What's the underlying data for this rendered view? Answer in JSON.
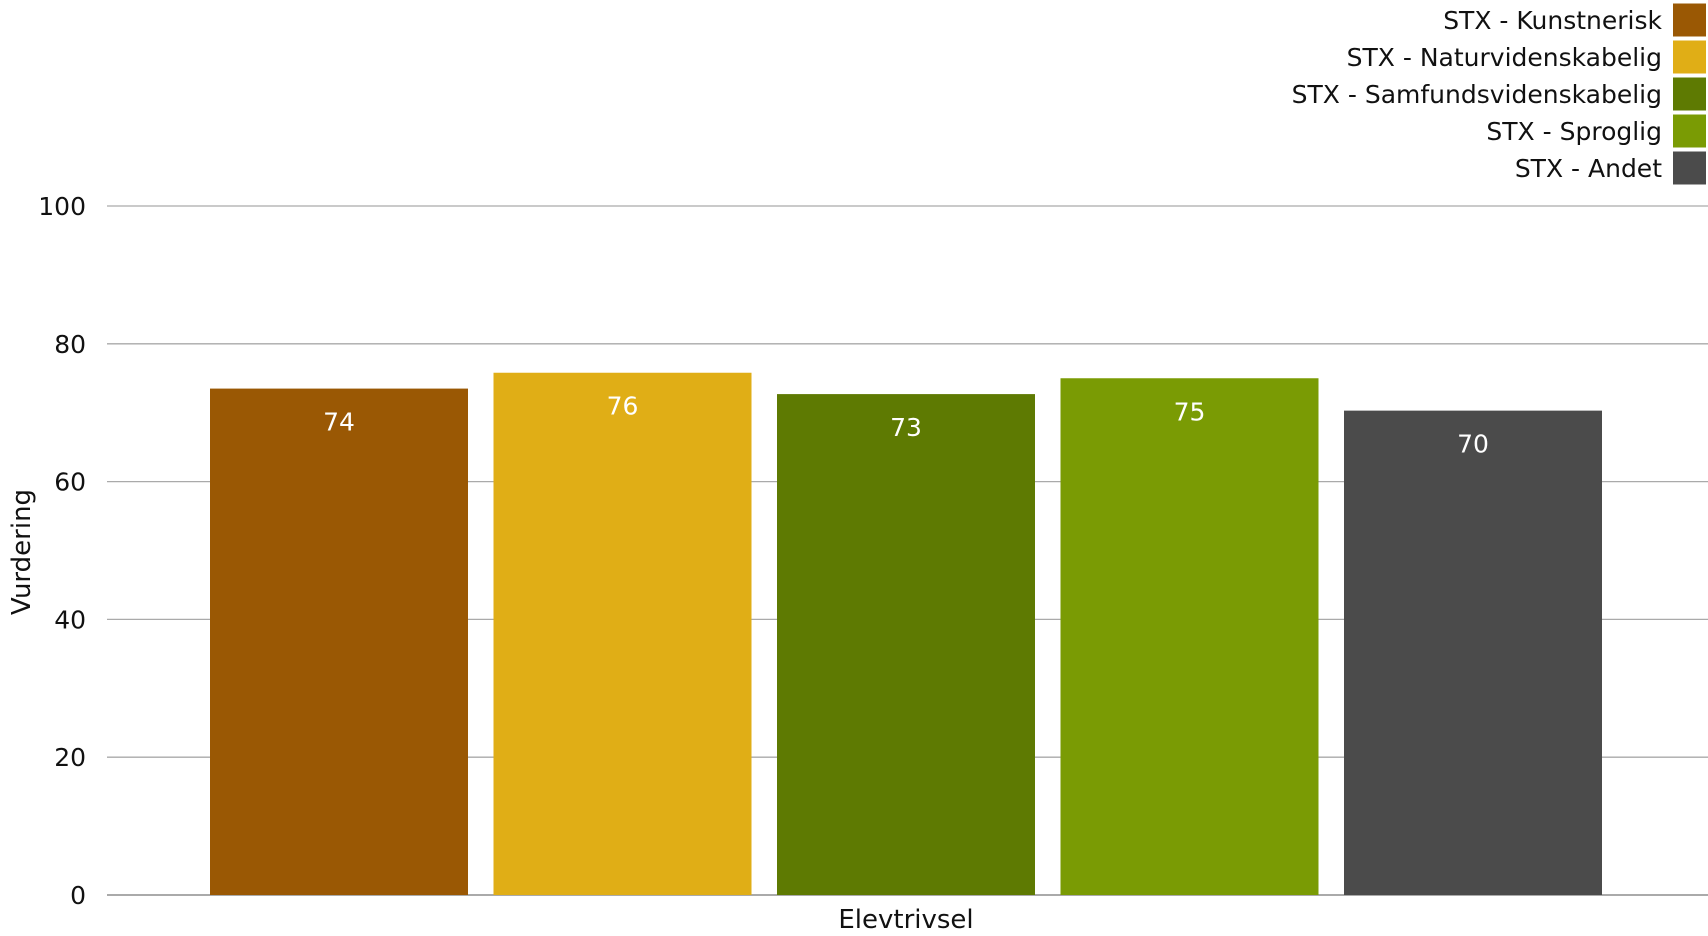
{
  "chart_data": {
    "type": "bar",
    "categories": [
      "Elevtrivsel"
    ],
    "xlabel": "Elevtrivsel",
    "ylabel": "Vurdering",
    "ylim": [
      0,
      100
    ],
    "yticks": [
      "0",
      "20",
      "40",
      "60",
      "80",
      "100"
    ],
    "grid": true,
    "legend_position": "top-right",
    "series": [
      {
        "name": "STX - Kunstnerisk",
        "values": [
          73.5
        ],
        "label": "74",
        "color": "#9A5804"
      },
      {
        "name": "STX - Naturvidenskabelig",
        "values": [
          75.8
        ],
        "label": "76",
        "color": "#E0AE16"
      },
      {
        "name": "STX - Samfundsvidenskabelig",
        "values": [
          72.7
        ],
        "label": "73",
        "color": "#5E7A02"
      },
      {
        "name": "STX - Sproglig",
        "values": [
          75.0
        ],
        "label": "75",
        "color": "#7A9B04"
      },
      {
        "name": "STX - Andet",
        "values": [
          70.3
        ],
        "label": "70",
        "color": "#4B4B4B"
      }
    ]
  }
}
